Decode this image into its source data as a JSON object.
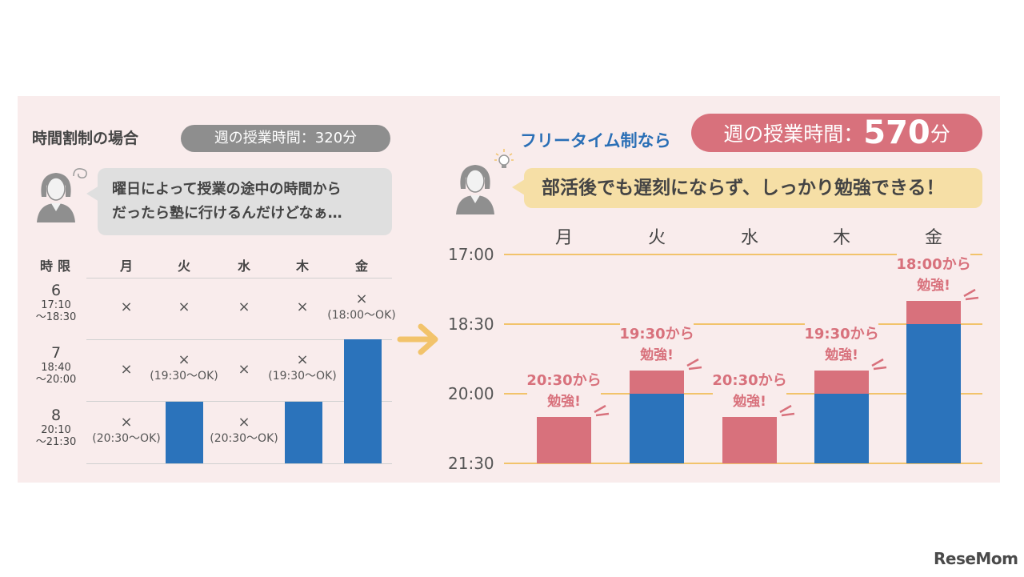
{
  "left": {
    "title": "時間割制の場合",
    "pill": "週の授業時間：320分",
    "bubble_line1": "曜日によって授業の途中の時間から",
    "bubble_line2": "だったら塾に行けるんだけどなぁ…",
    "header": {
      "period": "時限",
      "days": [
        "月",
        "火",
        "水",
        "木",
        "金"
      ]
    },
    "periods": [
      {
        "num": "6",
        "start": "17:10",
        "end": "～18:30"
      },
      {
        "num": "7",
        "start": "18:40",
        "end": "～20:00"
      },
      {
        "num": "8",
        "start": "20:10",
        "end": "～21:30"
      }
    ],
    "x_mark": "×",
    "cells": {
      "p6_fri": "(18:00～OK)",
      "p7_tue": "(19:30～OK)",
      "p7_thu": "(19:30～OK)",
      "p8_mon": "(20:30～OK)",
      "p8_wed": "(20:30～OK)"
    },
    "colors": {
      "study": "#2b73bb"
    }
  },
  "right": {
    "title": "フリータイム制なら",
    "pill_prefix": "週の授業時間：",
    "pill_value": "570",
    "pill_unit": "分",
    "bubble": "部活後でも遅刻にならず、しっかり勉強できる！"
  },
  "chart_data": {
    "type": "bar",
    "categories": [
      "月",
      "火",
      "水",
      "木",
      "金"
    ],
    "y_axis_ticks": [
      "17:00",
      "18:30",
      "20:00",
      "21:30"
    ],
    "y_axis_minutes": [
      1020,
      1110,
      1200,
      1290
    ],
    "series": [
      {
        "name": "",
        "color": "#d8717c",
        "start_minutes": [
          1230,
          1170,
          1230,
          1170,
          1080
        ],
        "end_minutes": [
          1290,
          1200,
          1290,
          1200,
          1110
        ]
      },
      {
        "name": "",
        "color": "#2b73bb",
        "start_minutes": [
          1290,
          1200,
          1290,
          1200,
          1110
        ],
        "end_minutes": [
          1290,
          1290,
          1290,
          1290,
          1290
        ]
      }
    ],
    "callouts": [
      {
        "line1": "20:30から",
        "line2": "勉強!"
      },
      {
        "line1": "19:30から",
        "line2": "勉強!"
      },
      {
        "line1": "20:30から",
        "line2": "勉強!"
      },
      {
        "line1": "19:30から",
        "line2": "勉強!"
      },
      {
        "line1": "18:00から",
        "line2": "勉強!"
      }
    ],
    "ylim": [
      1020,
      1290
    ]
  },
  "logo": "ReseMom"
}
